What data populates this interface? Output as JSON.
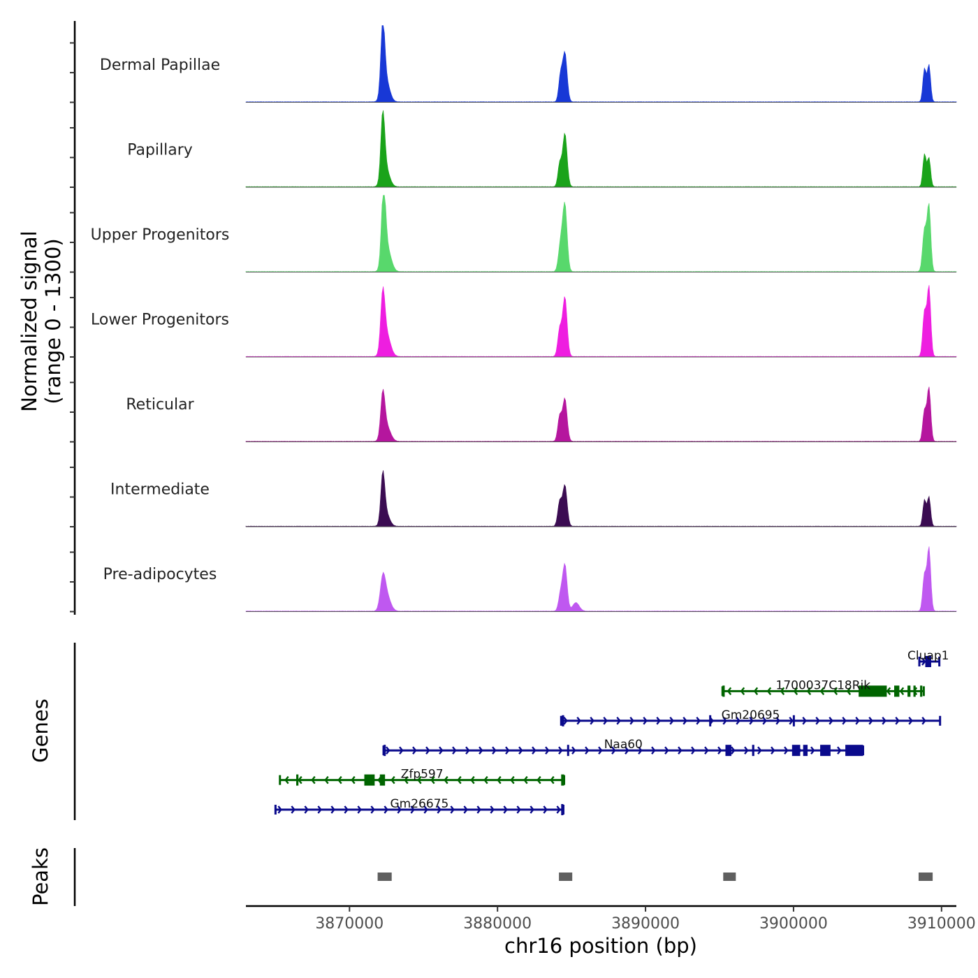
{
  "chart_data": {
    "type": "area",
    "title": "",
    "y_axis_title": [
      "Normalized signal",
      "(range 0 - 1300)"
    ],
    "ylim": [
      0,
      1300
    ],
    "x_axis_title": "chr16 position (bp)",
    "xlim": [
      3863000,
      3911000
    ],
    "x_ticks": [
      3870000,
      3880000,
      3890000,
      3900000,
      3910000
    ],
    "x_tick_labels": [
      "3870000",
      "3880000",
      "3890000",
      "3900000",
      "3910000"
    ],
    "tracks": [
      {
        "name": "Dermal Papillae",
        "color": "#1838d6",
        "peaks": [
          {
            "pos": 3872250,
            "value": 1270,
            "width": 130
          },
          {
            "pos": 3872450,
            "value": 420,
            "width": 250
          },
          {
            "pos": 3884250,
            "value": 460,
            "width": 120
          },
          {
            "pos": 3884550,
            "value": 920,
            "width": 150
          },
          {
            "pos": 3908850,
            "value": 620,
            "width": 110
          },
          {
            "pos": 3909150,
            "value": 690,
            "width": 110
          }
        ]
      },
      {
        "name": "Papillary",
        "color": "#1aa31a",
        "peaks": [
          {
            "pos": 3872250,
            "value": 1200,
            "width": 130
          },
          {
            "pos": 3872450,
            "value": 350,
            "width": 250
          },
          {
            "pos": 3884200,
            "value": 420,
            "width": 120
          },
          {
            "pos": 3884550,
            "value": 1000,
            "width": 150
          },
          {
            "pos": 3908850,
            "value": 610,
            "width": 110
          },
          {
            "pos": 3909150,
            "value": 540,
            "width": 110
          }
        ]
      },
      {
        "name": "Upper Progenitors",
        "color": "#58d86c",
        "peaks": [
          {
            "pos": 3872300,
            "value": 1380,
            "width": 140
          },
          {
            "pos": 3872550,
            "value": 430,
            "width": 260
          },
          {
            "pos": 3884250,
            "value": 480,
            "width": 140
          },
          {
            "pos": 3884550,
            "value": 1250,
            "width": 150
          },
          {
            "pos": 3908850,
            "value": 780,
            "width": 130
          },
          {
            "pos": 3909150,
            "value": 1230,
            "width": 120
          }
        ]
      },
      {
        "name": "Lower Progenitors",
        "color": "#ee1ee0",
        "peaks": [
          {
            "pos": 3872250,
            "value": 1030,
            "width": 140
          },
          {
            "pos": 3872500,
            "value": 420,
            "width": 260
          },
          {
            "pos": 3884200,
            "value": 500,
            "width": 130
          },
          {
            "pos": 3884550,
            "value": 1110,
            "width": 150
          },
          {
            "pos": 3908850,
            "value": 830,
            "width": 120
          },
          {
            "pos": 3909150,
            "value": 1300,
            "width": 120
          }
        ]
      },
      {
        "name": "Reticular",
        "color": "#b5169e",
        "peaks": [
          {
            "pos": 3872250,
            "value": 790,
            "width": 140
          },
          {
            "pos": 3872500,
            "value": 290,
            "width": 260
          },
          {
            "pos": 3884200,
            "value": 460,
            "width": 130
          },
          {
            "pos": 3884550,
            "value": 800,
            "width": 150
          },
          {
            "pos": 3908850,
            "value": 570,
            "width": 120
          },
          {
            "pos": 3909150,
            "value": 1000,
            "width": 120
          }
        ]
      },
      {
        "name": "Intermediate",
        "color": "#3b0c52",
        "peaks": [
          {
            "pos": 3872250,
            "value": 860,
            "width": 130
          },
          {
            "pos": 3872450,
            "value": 260,
            "width": 240
          },
          {
            "pos": 3884200,
            "value": 450,
            "width": 130
          },
          {
            "pos": 3884550,
            "value": 770,
            "width": 150
          },
          {
            "pos": 3908850,
            "value": 490,
            "width": 110
          },
          {
            "pos": 3909150,
            "value": 550,
            "width": 110
          }
        ]
      },
      {
        "name": "Pre-adipocytes",
        "color": "#bf58f0",
        "peaks": [
          {
            "pos": 3872250,
            "value": 520,
            "width": 170
          },
          {
            "pos": 3872500,
            "value": 300,
            "width": 260
          },
          {
            "pos": 3884250,
            "value": 300,
            "width": 130
          },
          {
            "pos": 3884550,
            "value": 870,
            "width": 150
          },
          {
            "pos": 3885300,
            "value": 160,
            "width": 220
          },
          {
            "pos": 3908850,
            "value": 680,
            "width": 120
          },
          {
            "pos": 3909150,
            "value": 1180,
            "width": 120
          }
        ]
      }
    ],
    "genes_title": "Genes",
    "genes": [
      {
        "name": "Cluap1",
        "strand": "+",
        "color": "#0a0a8c",
        "row": 0,
        "start": 3908500,
        "end": 3909850,
        "exons": [
          [
            3908900,
            3909300
          ]
        ]
      },
      {
        "name": "1700037C18Rik",
        "strand": "-",
        "color": "#006400",
        "row": 1,
        "start": 3895200,
        "end": 3908800,
        "exons": [
          [
            3904400,
            3906300
          ],
          [
            3906800,
            3907150
          ],
          [
            3907700,
            3907900
          ],
          [
            3908100,
            3908250
          ],
          [
            3908550,
            3908700
          ],
          [
            3895200,
            3895350
          ]
        ]
      },
      {
        "name": "Gm20695",
        "strand": "+",
        "color": "#0a0a8c",
        "row": 2,
        "start": 3884300,
        "end": 3909900,
        "exons": [
          [
            3884350,
            3884500
          ],
          [
            3894300,
            3894400
          ],
          [
            3899950,
            3900050
          ]
        ]
      },
      {
        "name": "Naa60",
        "strand": "+",
        "color": "#0a0a8c",
        "row": 3,
        "start": 3872300,
        "end": 3904700,
        "exons": [
          [
            3872300,
            3872450
          ],
          [
            3884700,
            3884800
          ],
          [
            3895400,
            3895800
          ],
          [
            3897200,
            3897350
          ],
          [
            3899900,
            3900450
          ],
          [
            3900650,
            3900950
          ],
          [
            3901800,
            3902500
          ],
          [
            3903500,
            3904700
          ]
        ]
      },
      {
        "name": "Zfp597",
        "strand": "-",
        "color": "#006400",
        "row": 4,
        "start": 3865300,
        "end": 3884500,
        "exons": [
          [
            3871000,
            3871700
          ],
          [
            3872050,
            3872400
          ],
          [
            3884300,
            3884500
          ],
          [
            3866400,
            3866550
          ]
        ]
      },
      {
        "name": "Gm26675",
        "strand": "+",
        "color": "#0a0a8c",
        "row": 5,
        "start": 3865000,
        "end": 3884450,
        "exons": [
          [
            3884300,
            3884450
          ]
        ]
      }
    ],
    "peaks_title": "Peaks",
    "peak_regions": [
      [
        3871900,
        3872850
      ],
      [
        3884150,
        3885050
      ],
      [
        3895250,
        3896100
      ],
      [
        3908450,
        3909400
      ]
    ]
  }
}
